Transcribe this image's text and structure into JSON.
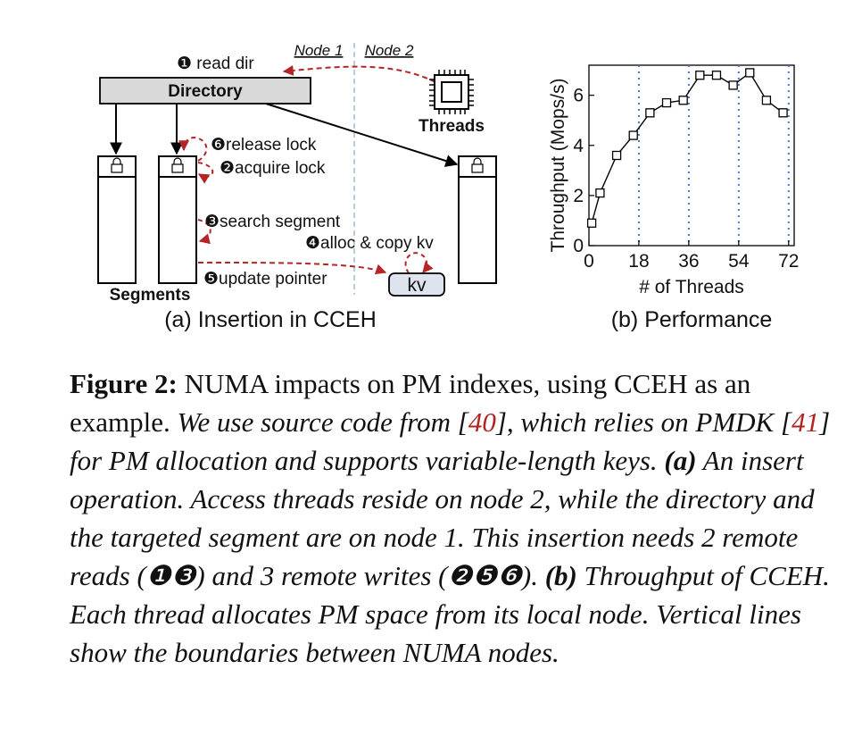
{
  "diagram": {
    "node1_label": "Node 1",
    "node2_label": "Node 2",
    "step1": "❶ read dir",
    "directory_label": "Directory",
    "threads_label": "Threads",
    "step6": "❻release lock",
    "step2": "❷acquire lock",
    "step3": "❸search segment",
    "step4": "❹alloc & copy kv",
    "step5": "❺update pointer",
    "segments_label": "Segments",
    "kv_label": "kv",
    "subcaption_a": "(a) Insertion in CCEH"
  },
  "chart_data": {
    "type": "line",
    "ylabel": "Throughput (Mops/s)",
    "xlabel": "# of Threads",
    "xticks": [
      "0",
      "18",
      "36",
      "54",
      "72"
    ],
    "yticks": [
      "0",
      "2",
      "4",
      "6"
    ],
    "xlim": [
      0,
      74
    ],
    "ylim": [
      0,
      7.2
    ],
    "x": [
      1,
      4,
      10,
      16,
      22,
      28,
      34,
      40,
      46,
      52,
      58,
      64,
      70
    ],
    "y": [
      0.9,
      2.1,
      3.6,
      4.4,
      5.3,
      5.7,
      5.8,
      6.8,
      6.8,
      6.4,
      6.9,
      5.8,
      5.3
    ],
    "boundaries": [
      18,
      36,
      54,
      72
    ],
    "subcaption_b": "(b) Performance"
  },
  "caption": {
    "fig_label": "Figure 2:",
    "main": " NUMA impacts on PM indexes, using CCEH as an example. ",
    "it1": "We use source code from [",
    "ref1": "40",
    "it2": "], which relies on PMDK [",
    "ref2": "41",
    "it3": "] for PM allocation and supports variable-length keys. ",
    "a_label": "(a)",
    "it4": " An insert operation. Access threads reside on node 2, while the directory and the targeted segment are on node 1. This insertion needs 2 remote reads (❶❸) and 3 remote writes (❷❺❻). ",
    "b_label": "(b)",
    "it5": " Throughput of CCEH. Each thread allocates PM space from its local node. Vertical lines show the boundaries between NUMA nodes."
  }
}
